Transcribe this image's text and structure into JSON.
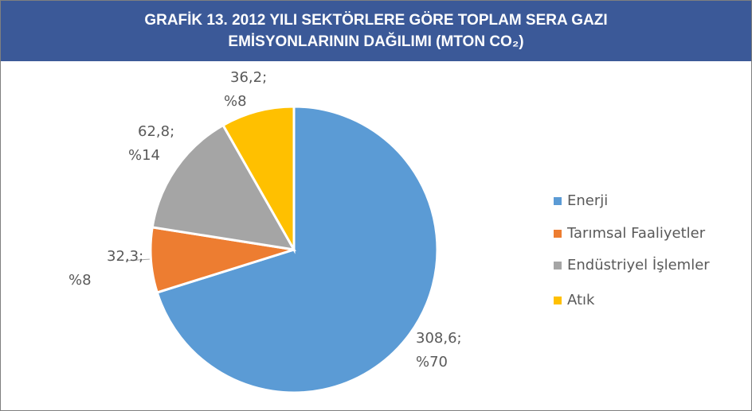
{
  "chart_data": {
    "type": "pie",
    "title": "GRAFİK 13. 2012 YILI SEKTÖRLERE GÖRE TOPLAM SERA GAZI EMİSYONLARININ DAĞILIMI (MTON CO₂)",
    "categories": [
      "Enerji",
      "Tarımsal Faaliyetler",
      "Endüstriyel İşlemler",
      "Atık"
    ],
    "values": [
      308.6,
      32.3,
      62.8,
      36.2
    ],
    "value_labels": [
      "308,6;",
      "32,3;",
      "62,8;",
      "36,2;"
    ],
    "percentages": [
      70,
      8,
      14,
      8
    ],
    "percentage_labels": [
      "%70",
      "%8",
      "%14",
      "%8"
    ],
    "colors": [
      "#5b9bd5",
      "#ed7d31",
      "#a5a5a5",
      "#ffc000"
    ],
    "legend": "right"
  }
}
